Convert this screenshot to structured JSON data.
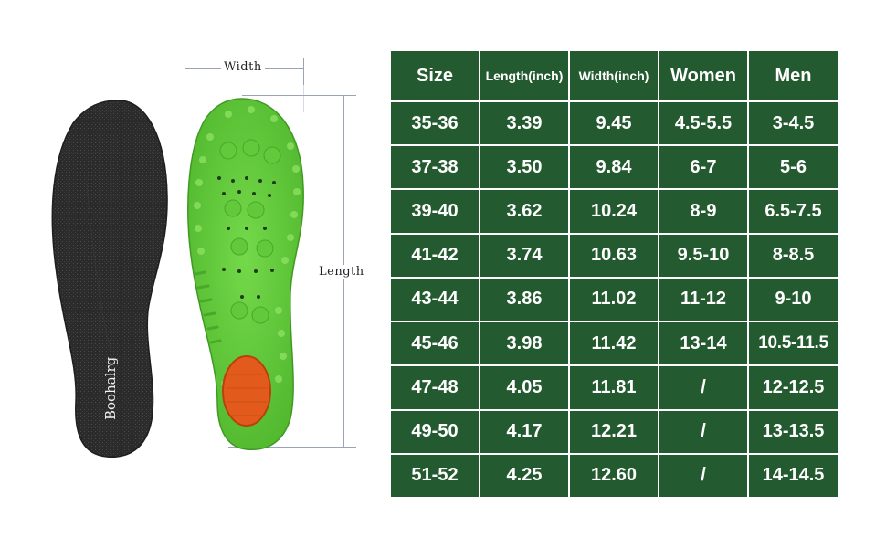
{
  "dimensions": {
    "width_label": "Width",
    "length_label": "Length"
  },
  "insole": {
    "brand": "Boohalrg",
    "top_color": "#2a2a2a",
    "bottom_color": "#6fd33f",
    "heel_pad_color": "#e25a1c"
  },
  "table": {
    "colors": {
      "cell_background": "#245a2f",
      "text": "#ffffff",
      "border": "#ffffff"
    },
    "headers": [
      "Size",
      "Length(inch)",
      "Width(inch)",
      "Women",
      "Men"
    ],
    "rows": [
      [
        "35-36",
        "3.39",
        "9.45",
        "4.5-5.5",
        "3-4.5"
      ],
      [
        "37-38",
        "3.50",
        "9.84",
        "6-7",
        "5-6"
      ],
      [
        "39-40",
        "3.62",
        "10.24",
        "8-9",
        "6.5-7.5"
      ],
      [
        "41-42",
        "3.74",
        "10.63",
        "9.5-10",
        "8-8.5"
      ],
      [
        "43-44",
        "3.86",
        "11.02",
        "11-12",
        "9-10"
      ],
      [
        "45-46",
        "3.98",
        "11.42",
        "13-14",
        "10.5-11.5"
      ],
      [
        "47-48",
        "4.05",
        "11.81",
        "/",
        "12-12.5"
      ],
      [
        "49-50",
        "4.17",
        "12.21",
        "/",
        "13-13.5"
      ],
      [
        "51-52",
        "4.25",
        "12.60",
        "/",
        "14-14.5"
      ]
    ]
  }
}
